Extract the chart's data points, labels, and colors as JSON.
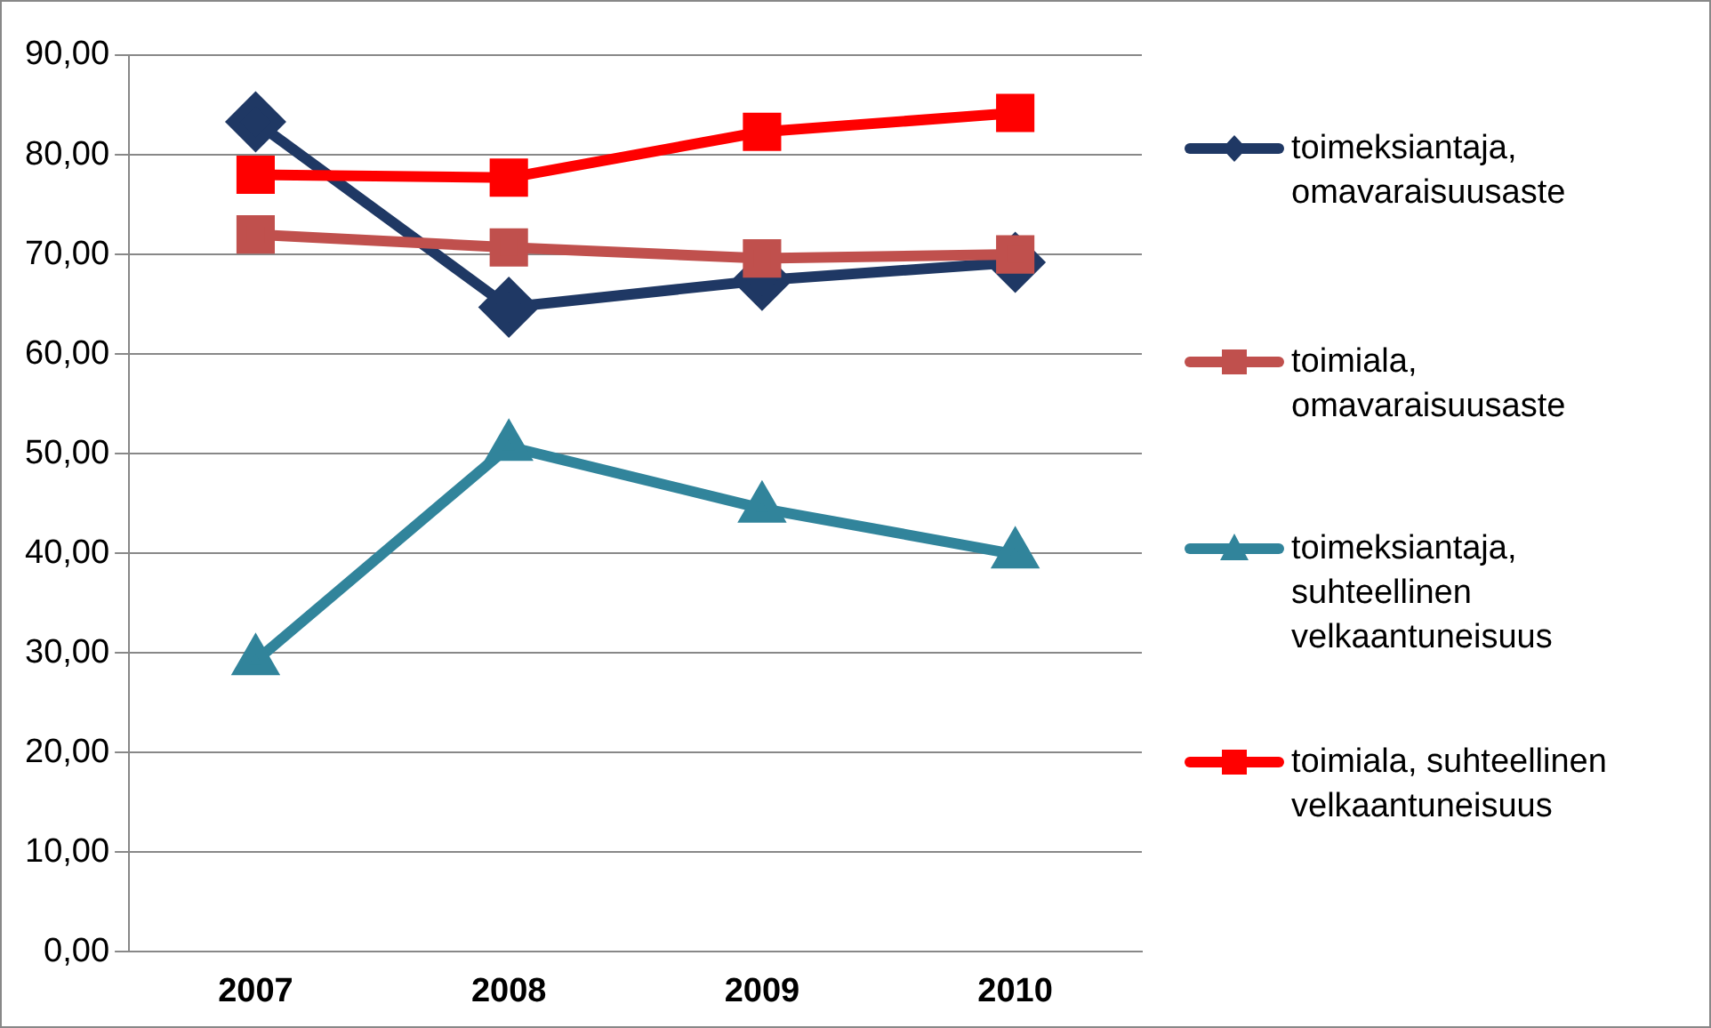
{
  "chart_data": {
    "type": "line",
    "categories": [
      "2007",
      "2008",
      "2009",
      "2010"
    ],
    "series": [
      {
        "name": "toimeksiantaja, omavaraisuusaste",
        "color": "#1f3864",
        "marker": "diamond",
        "values": [
          83.3,
          64.7,
          67.4,
          69.2
        ]
      },
      {
        "name": "toimiala, omavaraisuusaste",
        "color": "#c0504d",
        "marker": "square",
        "values": [
          72.0,
          70.7,
          69.6,
          70.0
        ]
      },
      {
        "name": "toimeksiantaja, suhteellinen velkaantuneisuus",
        "color": "#31849b",
        "marker": "triangle",
        "values": [
          29.2,
          50.7,
          44.5,
          39.9
        ]
      },
      {
        "name": "toimiala, suhteellinen velkaantuneisuus",
        "color": "#ff0000",
        "marker": "square",
        "values": [
          78.0,
          77.7,
          82.3,
          84.2
        ]
      }
    ],
    "ylim": [
      0,
      90
    ],
    "yticks": [
      {
        "value": 0,
        "label": "0,00"
      },
      {
        "value": 10,
        "label": "10,00"
      },
      {
        "value": 20,
        "label": "20,00"
      },
      {
        "value": 30,
        "label": "30,00"
      },
      {
        "value": 40,
        "label": "40,00"
      },
      {
        "value": 50,
        "label": "50,00"
      },
      {
        "value": 60,
        "label": "60,00"
      },
      {
        "value": 70,
        "label": "70,00"
      },
      {
        "value": 80,
        "label": "80,00"
      },
      {
        "value": 90,
        "label": "90,00"
      }
    ],
    "grid": "y",
    "legend": "right",
    "line_style": "solid"
  }
}
